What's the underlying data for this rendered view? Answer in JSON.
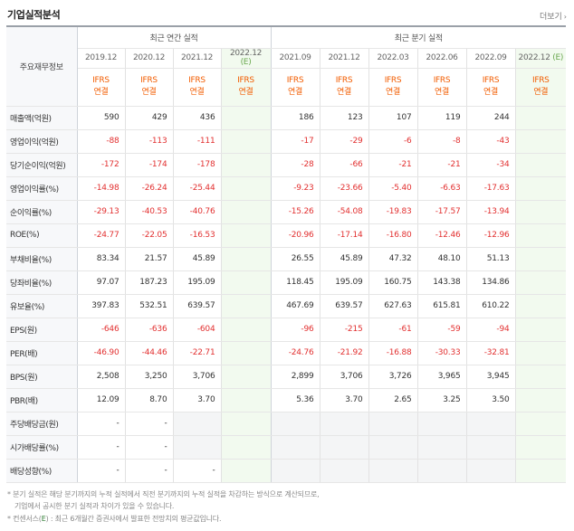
{
  "header": {
    "title": "기업실적분석",
    "more": "더보기"
  },
  "table": {
    "row_header": "주요재무정보",
    "groups": {
      "annual": "최근 연간 실적",
      "quarter": "최근 분기 실적"
    },
    "annual_dates": [
      "2019.12",
      "2020.12",
      "2021.12",
      "2022.12"
    ],
    "annual_est": "(E)",
    "quarter_dates": [
      "2021.09",
      "2021.12",
      "2022.03",
      "2022.06",
      "2022.09",
      "2022.12"
    ],
    "quarter_est": "(E)",
    "ifrs_line1": "IFRS",
    "ifrs_line2": "연결",
    "rows": [
      {
        "label": "매출액(억원)",
        "annual": [
          "590",
          "429",
          "436",
          ""
        ],
        "quarter": [
          "186",
          "123",
          "107",
          "119",
          "244",
          ""
        ]
      },
      {
        "label": "영업이익(억원)",
        "annual": [
          "-88",
          "-113",
          "-111",
          ""
        ],
        "quarter": [
          "-17",
          "-29",
          "-6",
          "-8",
          "-43",
          ""
        ]
      },
      {
        "label": "당기순이익(억원)",
        "annual": [
          "-172",
          "-174",
          "-178",
          ""
        ],
        "quarter": [
          "-28",
          "-66",
          "-21",
          "-21",
          "-34",
          ""
        ]
      },
      {
        "label": "영업이익률(%)",
        "annual": [
          "-14.98",
          "-26.24",
          "-25.44",
          ""
        ],
        "quarter": [
          "-9.23",
          "-23.66",
          "-5.40",
          "-6.63",
          "-17.63",
          ""
        ]
      },
      {
        "label": "순이익률(%)",
        "annual": [
          "-29.13",
          "-40.53",
          "-40.76",
          ""
        ],
        "quarter": [
          "-15.26",
          "-54.08",
          "-19.83",
          "-17.57",
          "-13.94",
          ""
        ]
      },
      {
        "label": "ROE(%)",
        "annual": [
          "-24.77",
          "-22.05",
          "-16.53",
          ""
        ],
        "quarter": [
          "-20.96",
          "-17.14",
          "-16.80",
          "-12.46",
          "-12.96",
          ""
        ]
      },
      {
        "label": "부채비율(%)",
        "annual": [
          "83.34",
          "21.57",
          "45.89",
          ""
        ],
        "quarter": [
          "26.55",
          "45.89",
          "47.32",
          "48.10",
          "51.13",
          ""
        ]
      },
      {
        "label": "당좌비율(%)",
        "annual": [
          "97.07",
          "187.23",
          "195.09",
          ""
        ],
        "quarter": [
          "118.45",
          "195.09",
          "160.75",
          "143.38",
          "134.86",
          ""
        ]
      },
      {
        "label": "유보율(%)",
        "annual": [
          "397.83",
          "532.51",
          "639.57",
          ""
        ],
        "quarter": [
          "467.69",
          "639.57",
          "627.63",
          "615.81",
          "610.22",
          ""
        ]
      },
      {
        "label": "EPS(원)",
        "annual": [
          "-646",
          "-636",
          "-604",
          ""
        ],
        "quarter": [
          "-96",
          "-215",
          "-61",
          "-59",
          "-94",
          ""
        ]
      },
      {
        "label": "PER(배)",
        "annual": [
          "-46.90",
          "-44.46",
          "-22.71",
          ""
        ],
        "quarter": [
          "-24.76",
          "-21.92",
          "-16.88",
          "-30.33",
          "-32.81",
          ""
        ]
      },
      {
        "label": "BPS(원)",
        "annual": [
          "2,508",
          "3,250",
          "3,706",
          ""
        ],
        "quarter": [
          "2,899",
          "3,706",
          "3,726",
          "3,965",
          "3,945",
          ""
        ]
      },
      {
        "label": "PBR(배)",
        "annual": [
          "12.09",
          "8.70",
          "3.70",
          ""
        ],
        "quarter": [
          "5.36",
          "3.70",
          "2.65",
          "3.25",
          "3.50",
          ""
        ]
      },
      {
        "label": "주당배당금(원)",
        "annual": [
          "-",
          "-",
          "",
          ""
        ],
        "quarter": [
          "",
          "",
          "",
          "",
          "",
          ""
        ]
      },
      {
        "label": "시가배당률(%)",
        "annual": [
          "-",
          "-",
          "",
          ""
        ],
        "quarter": [
          "",
          "",
          "",
          "",
          "",
          ""
        ]
      },
      {
        "label": "배당성향(%)",
        "annual": [
          "-",
          "-",
          "-",
          ""
        ],
        "quarter": [
          "",
          "",
          "",
          "",
          "",
          ""
        ]
      }
    ]
  },
  "footer": {
    "line1": "* 분기 실적은 해당 분기까지의 누적 실적에서 직전 분기까지의 누적 실적을 차감하는 방식으로 계산되므로,",
    "line2": "기업에서 공시한 분기 실적과 차이가 있을 수 있습니다.",
    "line3_pre": "* 컨센서스(",
    "line3_e": "E",
    "line3_post": ") : 최근 6개월간 증권사에서 발표한 전망치의 평균값입니다."
  },
  "colors": {
    "negative": "#e23030",
    "ifrs": "#f25c00",
    "estimate_bg": "#f2faef",
    "estimate_text": "#6aa84f"
  }
}
